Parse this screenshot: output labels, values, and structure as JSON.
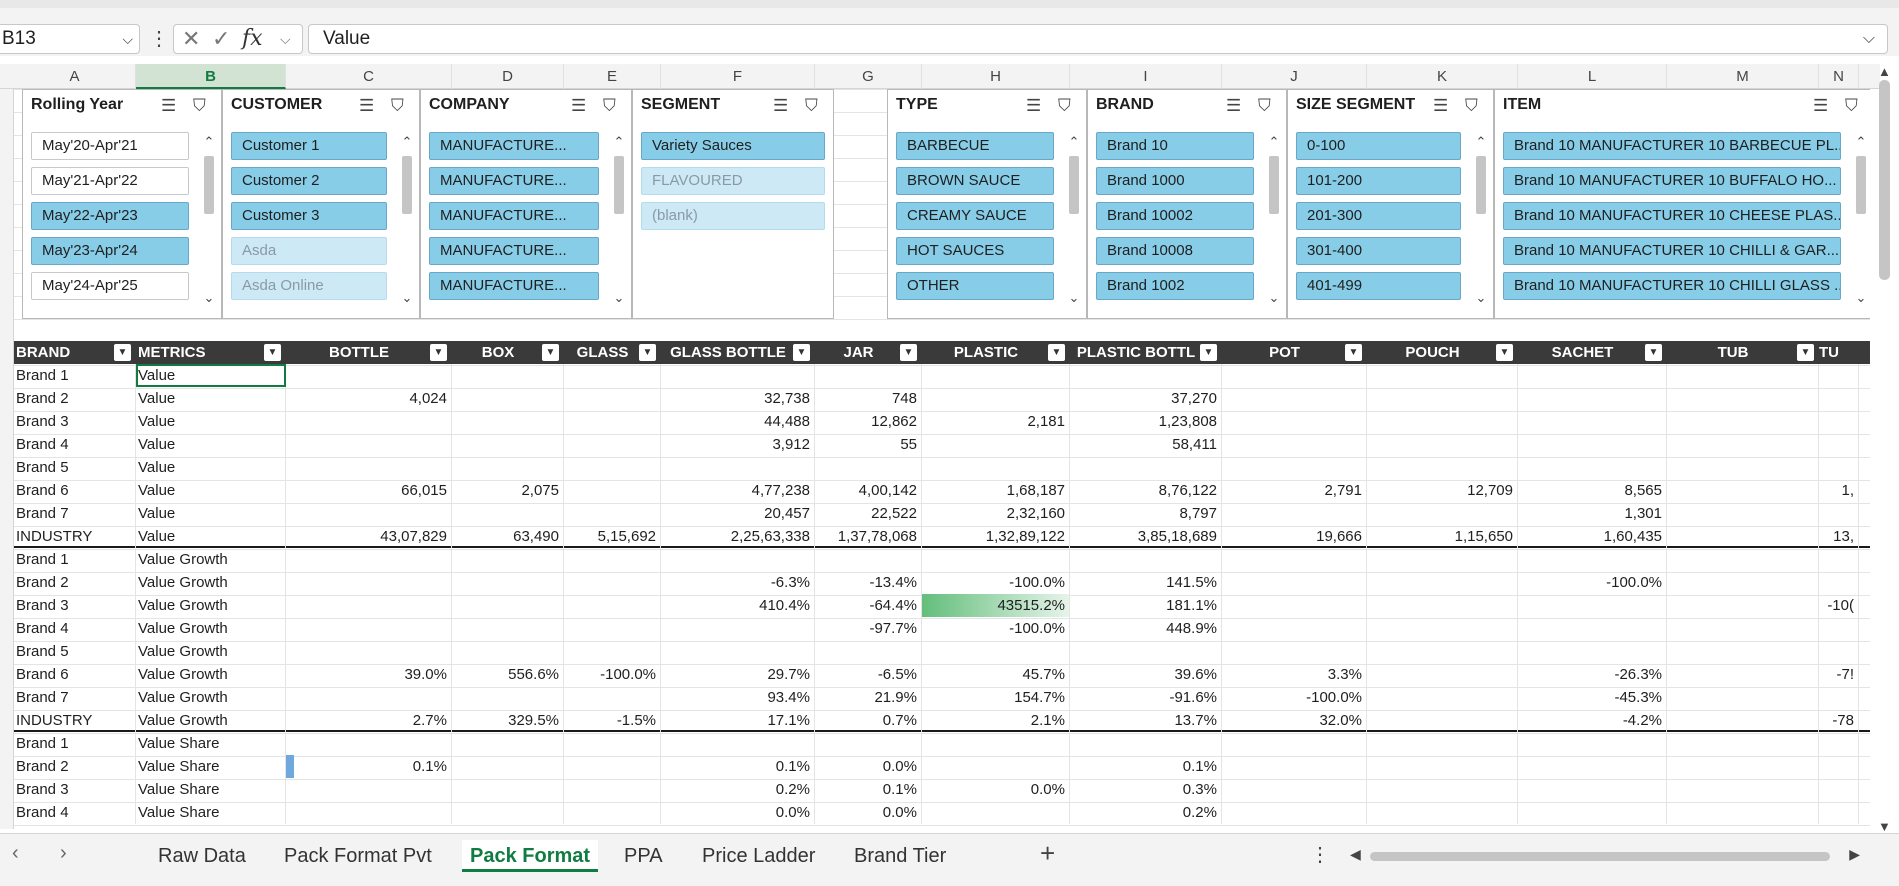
{
  "formula_bar": {
    "name_box": "B13",
    "content": "Value",
    "fx": "fx"
  },
  "columns": [
    "A",
    "B",
    "C",
    "D",
    "E",
    "F",
    "G",
    "H",
    "I",
    "J",
    "K",
    "L",
    "M",
    "N"
  ],
  "slicers": [
    {
      "title": "Rolling Year",
      "items": [
        {
          "label": "May'20-Apr'21",
          "state": "off"
        },
        {
          "label": "May'21-Apr'22",
          "state": "off"
        },
        {
          "label": "May'22-Apr'23",
          "state": "on"
        },
        {
          "label": "May'23-Apr'24",
          "state": "on"
        },
        {
          "label": "May'24-Apr'25",
          "state": "off"
        }
      ]
    },
    {
      "title": "CUSTOMER",
      "items": [
        {
          "label": "Customer 1",
          "state": "on"
        },
        {
          "label": "Customer 2",
          "state": "on"
        },
        {
          "label": "Customer 3",
          "state": "on"
        },
        {
          "label": "Asda",
          "state": "nd"
        },
        {
          "label": "Asda Online",
          "state": "nd"
        }
      ]
    },
    {
      "title": "COMPANY",
      "items": [
        {
          "label": "MANUFACTURE...",
          "state": "on"
        },
        {
          "label": "MANUFACTURE...",
          "state": "on"
        },
        {
          "label": "MANUFACTURE...",
          "state": "on"
        },
        {
          "label": "MANUFACTURE...",
          "state": "on"
        },
        {
          "label": "MANUFACTURE...",
          "state": "on"
        }
      ]
    },
    {
      "title": "SEGMENT",
      "items": [
        {
          "label": "Variety Sauces",
          "state": "on"
        },
        {
          "label": "FLAVOURED",
          "state": "nd"
        },
        {
          "label": "(blank)",
          "state": "nd"
        }
      ]
    },
    {
      "title": "TYPE",
      "items": [
        {
          "label": "BARBECUE",
          "state": "on"
        },
        {
          "label": "BROWN SAUCE",
          "state": "on"
        },
        {
          "label": "CREAMY SAUCE",
          "state": "on"
        },
        {
          "label": "HOT SAUCES",
          "state": "on"
        },
        {
          "label": "OTHER",
          "state": "on"
        }
      ]
    },
    {
      "title": "BRAND",
      "items": [
        {
          "label": "Brand 10",
          "state": "on"
        },
        {
          "label": "Brand 1000",
          "state": "on"
        },
        {
          "label": "Brand 10002",
          "state": "on"
        },
        {
          "label": "Brand 10008",
          "state": "on"
        },
        {
          "label": "Brand 1002",
          "state": "on"
        }
      ]
    },
    {
      "title": "SIZE SEGMENT",
      "items": [
        {
          "label": "0-100",
          "state": "on"
        },
        {
          "label": "101-200",
          "state": "on"
        },
        {
          "label": "201-300",
          "state": "on"
        },
        {
          "label": "301-400",
          "state": "on"
        },
        {
          "label": "401-499",
          "state": "on"
        }
      ]
    },
    {
      "title": "ITEM",
      "items": [
        {
          "label": "Brand 10 MANUFACTURER 10 BARBECUE PL...",
          "state": "on"
        },
        {
          "label": "Brand 10 MANUFACTURER 10 BUFFALO HO...",
          "state": "on"
        },
        {
          "label": "Brand 10 MANUFACTURER 10 CHEESE PLAS...",
          "state": "on"
        },
        {
          "label": "Brand 10 MANUFACTURER 10 CHILLI & GAR...",
          "state": "on"
        },
        {
          "label": "Brand 10 MANUFACTURER 10 CHILLI GLASS ...",
          "state": "on"
        }
      ]
    }
  ],
  "table": {
    "headers": [
      "BRAND",
      "METRICS",
      "BOTTLE",
      "BOX",
      "GLASS",
      "GLASS BOTTLE",
      "JAR",
      "PLASTIC",
      "PLASTIC BOTTL",
      "POT",
      "POUCH",
      "SACHET",
      "TUB",
      "TUE"
    ],
    "rows": [
      [
        "Brand 1",
        "Value",
        "",
        "",
        "",
        "",
        "",
        "",
        "",
        "",
        "",
        "",
        "",
        ""
      ],
      [
        "Brand 2",
        "Value",
        "4,024",
        "",
        "",
        "32,738",
        "748",
        "",
        "37,270",
        "",
        "",
        "",
        "",
        ""
      ],
      [
        "Brand 3",
        "Value",
        "",
        "",
        "",
        "44,488",
        "12,862",
        "2,181",
        "1,23,808",
        "",
        "",
        "",
        "",
        ""
      ],
      [
        "Brand 4",
        "Value",
        "",
        "",
        "",
        "3,912",
        "55",
        "",
        "58,411",
        "",
        "",
        "",
        "",
        ""
      ],
      [
        "Brand 5",
        "Value",
        "",
        "",
        "",
        "",
        "",
        "",
        "",
        "",
        "",
        "",
        "",
        ""
      ],
      [
        "Brand 6",
        "Value",
        "66,015",
        "2,075",
        "",
        "4,77,238",
        "4,00,142",
        "1,68,187",
        "8,76,122",
        "2,791",
        "12,709",
        "8,565",
        "",
        "1,"
      ],
      [
        "Brand 7",
        "Value",
        "",
        "",
        "",
        "20,457",
        "22,522",
        "2,32,160",
        "8,797",
        "",
        "",
        "1,301",
        "",
        ""
      ],
      [
        "INDUSTRY",
        "Value",
        "43,07,829",
        "63,490",
        "5,15,692",
        "2,25,63,338",
        "1,37,78,068",
        "1,32,89,122",
        "3,85,18,689",
        "19,666",
        "1,15,650",
        "1,60,435",
        "",
        "13,"
      ],
      [
        "Brand 1",
        "Value Growth",
        "",
        "",
        "",
        "",
        "",
        "",
        "",
        "",
        "",
        "",
        "",
        ""
      ],
      [
        "Brand 2",
        "Value Growth",
        "",
        "",
        "",
        "-6.3%",
        "-13.4%",
        "-100.0%",
        "141.5%",
        "",
        "",
        "-100.0%",
        "",
        ""
      ],
      [
        "Brand 3",
        "Value Growth",
        "",
        "",
        "",
        "410.4%",
        "-64.4%",
        "43515.2%",
        "181.1%",
        "",
        "",
        "",
        "",
        "-10("
      ],
      [
        "Brand 4",
        "Value Growth",
        "",
        "",
        "",
        "",
        "-97.7%",
        "-100.0%",
        "448.9%",
        "",
        "",
        "",
        "",
        ""
      ],
      [
        "Brand 5",
        "Value Growth",
        "",
        "",
        "",
        "",
        "",
        "",
        "",
        "",
        "",
        "",
        "",
        ""
      ],
      [
        "Brand 6",
        "Value Growth",
        "39.0%",
        "556.6%",
        "-100.0%",
        "29.7%",
        "-6.5%",
        "45.7%",
        "39.6%",
        "3.3%",
        "",
        "-26.3%",
        "",
        "-7!"
      ],
      [
        "Brand 7",
        "Value Growth",
        "",
        "",
        "",
        "93.4%",
        "21.9%",
        "154.7%",
        "-91.6%",
        "-100.0%",
        "",
        "-45.3%",
        "",
        ""
      ],
      [
        "INDUSTRY",
        "Value Growth",
        "2.7%",
        "329.5%",
        "-1.5%",
        "17.1%",
        "0.7%",
        "2.1%",
        "13.7%",
        "32.0%",
        "",
        "-4.2%",
        "",
        "-78"
      ],
      [
        "Brand 1",
        "Value Share",
        "",
        "",
        "",
        "",
        "",
        "",
        "",
        "",
        "",
        "",
        "",
        ""
      ],
      [
        "Brand 2",
        "Value Share",
        "0.1%",
        "",
        "",
        "0.1%",
        "0.0%",
        "",
        "0.1%",
        "",
        "",
        "",
        "",
        ""
      ],
      [
        "Brand 3",
        "Value Share",
        "",
        "",
        "",
        "0.2%",
        "0.1%",
        "0.0%",
        "0.3%",
        "",
        "",
        "",
        "",
        ""
      ],
      [
        "Brand 4",
        "Value Share",
        "",
        "",
        "",
        "0.0%",
        "0.0%",
        "",
        "0.2%",
        "",
        "",
        "",
        "",
        ""
      ]
    ]
  },
  "sheet_tabs": [
    {
      "label": "Raw Data"
    },
    {
      "label": "Pack Format Pvt"
    },
    {
      "label": "Pack Format",
      "active": true
    },
    {
      "label": "PPA"
    },
    {
      "label": "Price Ladder"
    },
    {
      "label": "Brand Tier"
    }
  ]
}
